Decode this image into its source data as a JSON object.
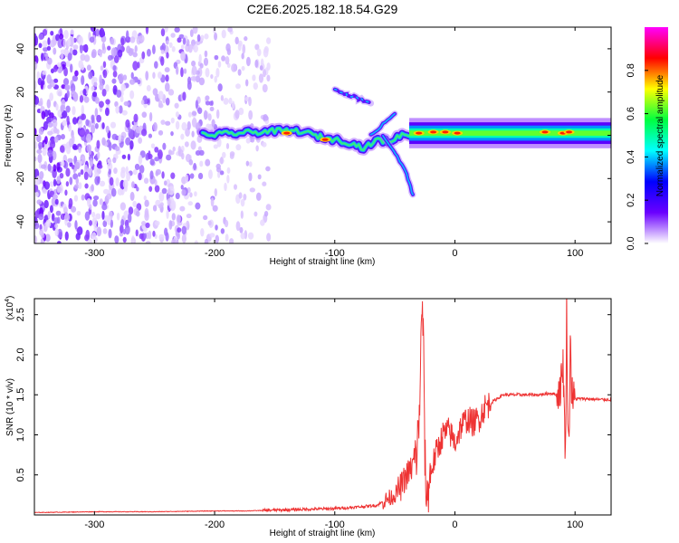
{
  "title": "C2E6.2025.182.18.54.G29",
  "chart_data": [
    {
      "type": "heatmap",
      "xlabel": "Height of straight line (km)",
      "ylabel": "Frequency (Hz)",
      "xlim": [
        -350,
        130
      ],
      "ylim": [
        -50,
        50
      ],
      "x_ticks": [
        -300,
        -200,
        -100,
        0,
        100
      ],
      "x_tick_labels": [
        "-300",
        "-200",
        "-100",
        "0",
        "100"
      ],
      "y_ticks": [
        -40,
        -20,
        0,
        20,
        40
      ],
      "y_tick_labels": [
        "-40",
        "-20",
        "0",
        "20",
        "40"
      ],
      "colorbar": {
        "label": "Normalized spectral amplitude",
        "range": [
          0,
          1
        ],
        "ticks": [
          0.0,
          0.2,
          0.4,
          0.6,
          0.8
        ],
        "tick_labels": [
          "0.0",
          "0.2",
          "0.4",
          "0.6",
          "0.8"
        ],
        "colors": [
          "#ffffff",
          "#6a00ff",
          "#0000ff",
          "#00ffff",
          "#00ff40",
          "#ffff00",
          "#ff0000",
          "#ff00ff"
        ]
      },
      "ridge": [
        {
          "x": -210,
          "y": 0
        },
        {
          "x": -180,
          "y": 1
        },
        {
          "x": -150,
          "y": 2
        },
        {
          "x": -130,
          "y": 2
        },
        {
          "x": -110,
          "y": -1
        },
        {
          "x": -90,
          "y": -3
        },
        {
          "x": -75,
          "y": -6
        },
        {
          "x": -65,
          "y": -2
        },
        {
          "x": -55,
          "y": -3
        },
        {
          "x": -45,
          "y": 0
        },
        {
          "x": -35,
          "y": 1
        },
        {
          "x": -20,
          "y": 1
        },
        {
          "x": 0,
          "y": 1
        },
        {
          "x": 50,
          "y": 1
        },
        {
          "x": 100,
          "y": 1
        },
        {
          "x": 130,
          "y": 1
        }
      ],
      "branches": [
        [
          {
            "x": -100,
            "y": 21
          },
          {
            "x": -90,
            "y": 19
          },
          {
            "x": -80,
            "y": 17
          },
          {
            "x": -70,
            "y": 15
          }
        ],
        [
          {
            "x": -60,
            "y": 0
          },
          {
            "x": -50,
            "y": -8
          },
          {
            "x": -40,
            "y": -18
          },
          {
            "x": -35,
            "y": -28
          }
        ],
        [
          {
            "x": -70,
            "y": 0
          },
          {
            "x": -60,
            "y": 5
          },
          {
            "x": -50,
            "y": 10
          }
        ]
      ],
      "noise_region_x": [
        -350,
        -165
      ]
    },
    {
      "type": "line",
      "xlabel": "Height of straight line (km)",
      "ylabel": "SNR (10 * v/v)",
      "y_scale_label": "(x10",
      "y_scale_exp": "4",
      "scale_multiplier": 10000,
      "xlim": [
        -350,
        130
      ],
      "ylim": [
        0,
        2.7
      ],
      "x_ticks": [
        -300,
        -200,
        -100,
        0,
        100
      ],
      "x_tick_labels": [
        "-300",
        "-200",
        "-100",
        "0",
        "100"
      ],
      "y_ticks": [
        0.5,
        1.0,
        1.5,
        2.0,
        2.5
      ],
      "y_tick_labels": [
        "0.5",
        "1.0",
        "1.5",
        "2.0",
        "2.5"
      ],
      "color": "#ee3333",
      "series": [
        {
          "x": [
            -350,
            -300,
            -250,
            -200,
            -175,
            -150,
            -125,
            -100,
            -80,
            -65,
            -50,
            -45,
            -40,
            -35,
            -32,
            -30,
            -28,
            -27,
            -26,
            -25,
            -24,
            -22,
            -20,
            -15,
            -10,
            -5,
            0,
            5,
            10,
            15,
            20,
            25,
            30,
            40,
            50,
            60,
            70,
            80,
            85,
            88,
            90,
            92,
            93,
            94,
            95,
            96,
            97,
            98,
            100,
            110,
            120,
            130
          ],
          "y": [
            0.03,
            0.04,
            0.04,
            0.05,
            0.05,
            0.06,
            0.07,
            0.08,
            0.1,
            0.12,
            0.25,
            0.35,
            0.5,
            0.6,
            0.75,
            1.1,
            2.2,
            2.7,
            1.9,
            0.8,
            0.2,
            0.35,
            0.55,
            0.8,
            1.0,
            1.05,
            0.9,
            1.1,
            1.2,
            1.15,
            1.2,
            1.35,
            1.4,
            1.5,
            1.5,
            1.5,
            1.5,
            1.52,
            1.5,
            1.6,
            1.9,
            0.7,
            2.65,
            1.2,
            0.8,
            2.3,
            1.6,
            1.45,
            1.45,
            1.45,
            1.44,
            1.44
          ]
        }
      ]
    }
  ]
}
